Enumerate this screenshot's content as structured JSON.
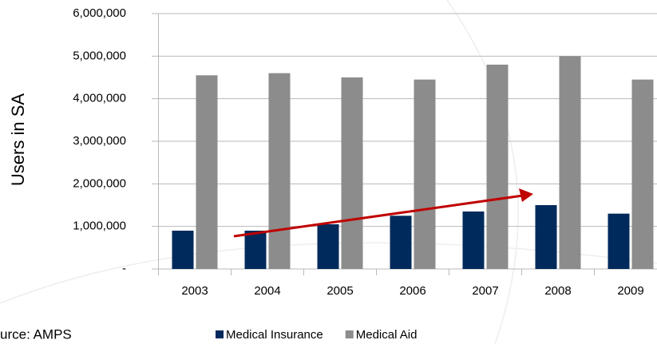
{
  "chart_data": {
    "type": "bar",
    "y_axis_label": "Users in SA",
    "source": "urce: AMPS",
    "categories": [
      "2003",
      "2004",
      "2005",
      "2006",
      "2007",
      "2008",
      "2009"
    ],
    "series": [
      {
        "name": "Medical Insurance",
        "color": "#002a5c",
        "values": [
          900000,
          900000,
          1050000,
          1250000,
          1350000,
          1500000,
          1300000
        ]
      },
      {
        "name": "Medical Aid",
        "color": "#8c8c8c",
        "values": [
          4550000,
          4600000,
          4500000,
          4450000,
          4800000,
          5000000,
          4450000
        ]
      }
    ],
    "ylim": [
      0,
      6000000
    ],
    "yticks": [
      {
        "value": 0,
        "label": "-"
      },
      {
        "value": 1000000,
        "label": "1,000,000"
      },
      {
        "value": 2000000,
        "label": "2,000,000"
      },
      {
        "value": 3000000,
        "label": "3,000,000"
      },
      {
        "value": 4000000,
        "label": "4,000,000"
      },
      {
        "value": 5000000,
        "label": "5,000,000"
      },
      {
        "value": 6000000,
        "label": "6,000,000"
      }
    ],
    "grid": true,
    "legend": "bottom"
  }
}
